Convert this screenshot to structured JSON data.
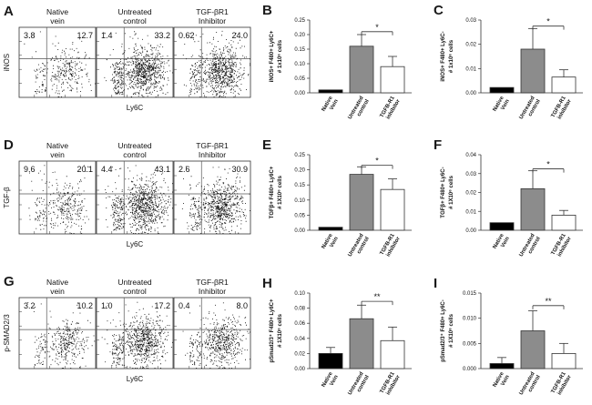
{
  "flow_rows": [
    {
      "letter": "A",
      "ylabel": "iNOS",
      "xlabel": "Ly6C",
      "plots": [
        {
          "title": [
            "Native",
            "vein"
          ],
          "q_left": "3.8",
          "q_right": "12.7",
          "density": 0.15
        },
        {
          "title": [
            "Untreated",
            "control"
          ],
          "q_left": "1.4",
          "q_right": "33.2",
          "density": 1.0
        },
        {
          "title": [
            "TGF-βR1",
            "Inhibitor"
          ],
          "q_left": "0.62",
          "q_right": "24.0",
          "density": 0.85
        }
      ]
    },
    {
      "letter": "D",
      "ylabel": "TGF-β",
      "xlabel": "Ly6C",
      "plots": [
        {
          "title": [
            "Native",
            "vein"
          ],
          "q_left": "9.6",
          "q_right": "20.1",
          "density": 0.2
        },
        {
          "title": [
            "Untreated",
            "control"
          ],
          "q_left": "4.4",
          "q_right": "43.1",
          "density": 1.0
        },
        {
          "title": [
            "TGF-βR1",
            "Inhibitor"
          ],
          "q_left": "2.6",
          "q_right": "30.9",
          "density": 0.8
        }
      ]
    },
    {
      "letter": "G",
      "ylabel": "p-SMAD2/3",
      "xlabel": "Ly6C",
      "plots": [
        {
          "title": [
            "Native",
            "vein"
          ],
          "q_left": "3.2",
          "q_right": "10.2",
          "density": 0.25
        },
        {
          "title": [
            "Untreated",
            "control"
          ],
          "q_left": "1.0",
          "q_right": "17.2",
          "density": 0.8
        },
        {
          "title": [
            "TGF-βR1",
            "Inhibitor"
          ],
          "q_left": "0.4",
          "q_right": "8.0",
          "density": 0.55
        }
      ]
    }
  ],
  "chart_data": [
    {
      "letter": "B",
      "type": "bar",
      "ylabel": [
        "iNOS+ F480+ Ly6C+",
        "# 1x10⁶ cells"
      ],
      "categories": [
        [
          "Native",
          "Vein"
        ],
        [
          "Untreated",
          "control"
        ],
        [
          "TGFB-R1",
          "inhibitor"
        ]
      ],
      "values": [
        0.01,
        0.16,
        0.09
      ],
      "errors": [
        0,
        0.04,
        0.035
      ],
      "ylim": [
        0,
        0.25
      ],
      "ticks": [
        "0.00",
        "0.05",
        "0.10",
        "0.15",
        "0.20",
        "0.25"
      ],
      "sig": "*",
      "sig_level": 0.21
    },
    {
      "letter": "C",
      "type": "bar",
      "ylabel": [
        "iNOS+ F480+ Ly6C-",
        "# 1x10⁶ cells"
      ],
      "categories": [
        [
          "Native",
          "Vein"
        ],
        [
          "Untreated",
          "control"
        ],
        [
          "TGFB-R1",
          "inhibitor"
        ]
      ],
      "values": [
        0.0022,
        0.018,
        0.0065
      ],
      "errors": [
        0,
        0.0085,
        0.003
      ],
      "ylim": [
        0,
        0.03
      ],
      "ticks": [
        "0.00",
        "0.01",
        "0.02",
        "0.03"
      ],
      "sig": "*",
      "sig_level": 0.0275
    },
    {
      "letter": "E",
      "type": "bar",
      "ylabel": [
        "TGFβ+ F480+ Ly6C+",
        "# 1X10⁶ cells"
      ],
      "categories": [
        [
          "Native",
          "Vein"
        ],
        [
          "Untreated",
          "control"
        ],
        [
          "TGFB-R1",
          "inhibitor"
        ]
      ],
      "values": [
        0.01,
        0.185,
        0.135
      ],
      "errors": [
        0,
        0.025,
        0.035
      ],
      "ylim": [
        0,
        0.25
      ],
      "ticks": [
        "0.00",
        "0.05",
        "0.10",
        "0.15",
        "0.20",
        "0.25"
      ],
      "sig": "*",
      "sig_level": 0.215
    },
    {
      "letter": "F",
      "type": "bar",
      "ylabel": [
        "TGFβ+ F480+ Ly6C-",
        "# 1X10⁶ cells"
      ],
      "categories": [
        [
          "Native",
          "Vein"
        ],
        [
          "Untreated",
          "control"
        ],
        [
          "TGFB-R1",
          "inhibitor"
        ]
      ],
      "values": [
        0.004,
        0.022,
        0.008
      ],
      "errors": [
        0,
        0.0095,
        0.0025
      ],
      "ylim": [
        0,
        0.04
      ],
      "ticks": [
        "0.00",
        "0.01",
        "0.02",
        "0.03",
        "0.04"
      ],
      "sig": "*",
      "sig_level": 0.0325
    },
    {
      "letter": "H",
      "type": "bar",
      "ylabel": [
        "pSmad2/3⁺ F480+ Ly6C+",
        "# 1X10⁶ cells"
      ],
      "categories": [
        [
          "Native",
          "Vein"
        ],
        [
          "Untreated",
          "control"
        ],
        [
          "TGFB-R1",
          "inhibitor"
        ]
      ],
      "values": [
        0.02,
        0.066,
        0.037
      ],
      "errors": [
        0.008,
        0.018,
        0.018
      ],
      "ylim": [
        0,
        0.1
      ],
      "ticks": [
        "0.00",
        "0.02",
        "0.04",
        "0.06",
        "0.08",
        "0.10"
      ],
      "sig": "**",
      "sig_level": 0.089
    },
    {
      "letter": "I",
      "type": "bar",
      "ylabel": [
        "pSmad2/3⁺ F480+ Ly6C-",
        "# 1X10⁶ cells"
      ],
      "categories": [
        [
          "Native",
          "Vein"
        ],
        [
          "Untreated",
          "control"
        ],
        [
          "TGFB-R1",
          "inhibitor"
        ]
      ],
      "values": [
        0.001,
        0.0075,
        0.003
      ],
      "errors": [
        0.0012,
        0.004,
        0.002
      ],
      "ylim": [
        0,
        0.015
      ],
      "ticks": [
        "0.000",
        "0.005",
        "0.010",
        "0.015"
      ],
      "sig": "**",
      "sig_level": 0.0125
    }
  ],
  "bar_colors": [
    "#000000",
    "#8c8c8c",
    "#ffffff"
  ]
}
